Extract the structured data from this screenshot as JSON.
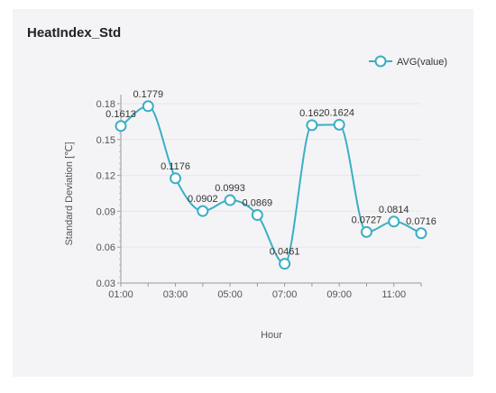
{
  "chart_data": {
    "type": "line",
    "title": "HeatIndex_Std",
    "xlabel": "Hour",
    "ylabel": "Standard Deviation [℃]",
    "x": [
      "01:00",
      "02:00",
      "03:00",
      "04:00",
      "05:00",
      "06:00",
      "07:00",
      "08:00",
      "09:00",
      "10:00",
      "11:00",
      "12:00"
    ],
    "x_tick_labels": [
      "01:00",
      "03:00",
      "05:00",
      "07:00",
      "09:00",
      "11:00"
    ],
    "y_tick_labels": [
      "0.03",
      "0.06",
      "0.09",
      "0.12",
      "0.15",
      "0.18"
    ],
    "ylim": [
      0.03,
      0.18
    ],
    "series": [
      {
        "name": "AVG(value)",
        "color": "#3aafc4",
        "values": [
          0.1613,
          0.1779,
          0.1176,
          0.0902,
          0.0993,
          0.0869,
          0.0461,
          0.162,
          0.1624,
          0.0727,
          0.0814,
          0.0716
        ],
        "labels": [
          "0.1613",
          "0.1779",
          "0.1176",
          "0.0902",
          "0.0993",
          "0.0869",
          "0.0461",
          "0.162",
          "0.1624",
          "0.0727",
          "0.0814",
          "0.0716"
        ]
      }
    ],
    "legend": "top-right",
    "grid": true
  }
}
